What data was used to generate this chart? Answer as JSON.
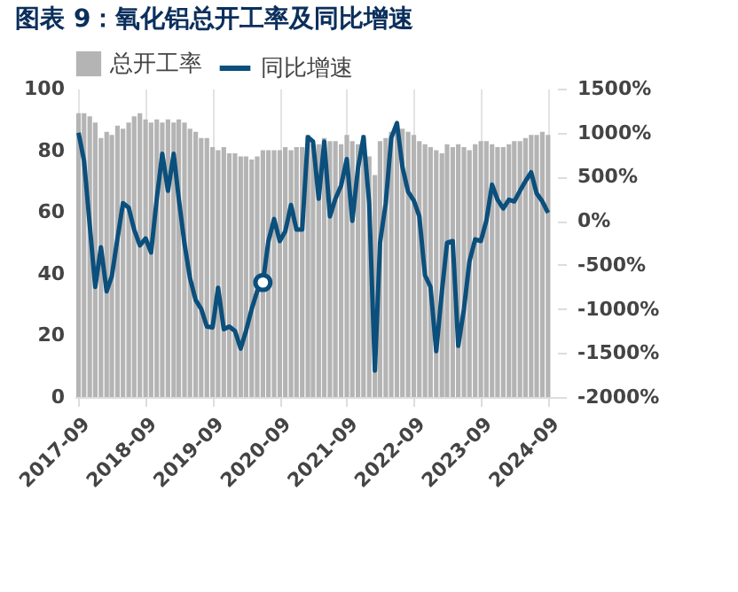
{
  "chart_data": {
    "type": "bar",
    "title": "图表 9：氧化铝总开工率及同比增速",
    "x": [
      "2017-09",
      "2017-10",
      "2017-11",
      "2017-12",
      "2018-01",
      "2018-02",
      "2018-03",
      "2018-04",
      "2018-05",
      "2018-06",
      "2018-07",
      "2018-08",
      "2018-09",
      "2018-10",
      "2018-11",
      "2018-12",
      "2019-01",
      "2019-02",
      "2019-03",
      "2019-04",
      "2019-05",
      "2019-06",
      "2019-07",
      "2019-08",
      "2019-09",
      "2019-10",
      "2019-11",
      "2019-12",
      "2020-01",
      "2020-02",
      "2020-03",
      "2020-04",
      "2020-05",
      "2020-06",
      "2020-07",
      "2020-08",
      "2020-09",
      "2020-10",
      "2020-11",
      "2020-12",
      "2021-01",
      "2021-02",
      "2021-03",
      "2021-04",
      "2021-05",
      "2021-06",
      "2021-07",
      "2021-08",
      "2021-09",
      "2021-10",
      "2021-11",
      "2021-12",
      "2022-01",
      "2022-02",
      "2022-03",
      "2022-04",
      "2022-05",
      "2022-06",
      "2022-07",
      "2022-08",
      "2022-09",
      "2022-10",
      "2022-11",
      "2022-12",
      "2023-01",
      "2023-02",
      "2023-03",
      "2023-04",
      "2023-05",
      "2023-06",
      "2023-07",
      "2023-08",
      "2023-09",
      "2023-10",
      "2023-11",
      "2023-12",
      "2024-01",
      "2024-02",
      "2024-03",
      "2024-04",
      "2024-05",
      "2024-06",
      "2024-07",
      "2024-08",
      "2024-09"
    ],
    "series": [
      {
        "name": "总开工率",
        "color": "#b4b4b4",
        "values": [
          92,
          92,
          91,
          89,
          84,
          86,
          85,
          88,
          87,
          89,
          91,
          92,
          90,
          89,
          90,
          89,
          90,
          89,
          90,
          89,
          87,
          86,
          84,
          84,
          81,
          80,
          81,
          79,
          79,
          78,
          78,
          77,
          78,
          80,
          80,
          80,
          80,
          81,
          80,
          81,
          81,
          85,
          82,
          82,
          84,
          83,
          83,
          82,
          85,
          83,
          82,
          85,
          78,
          72,
          83,
          84,
          86,
          88,
          87,
          86,
          85,
          83,
          82,
          81,
          80,
          79,
          82,
          81,
          82,
          81,
          80,
          82,
          83,
          83,
          82,
          81,
          81,
          82,
          83,
          83,
          84,
          85,
          85,
          86,
          85
        ]
      },
      {
        "name": "同比增速",
        "type": "line",
        "axis": "y2",
        "color": "#0b4f7c",
        "values": [
          1000,
          680,
          -50,
          -750,
          -300,
          -800,
          -630,
          -200,
          200,
          150,
          -100,
          -280,
          -200,
          -360,
          250,
          760,
          340,
          760,
          250,
          -260,
          -650,
          -900,
          -1000,
          -1200,
          -1210,
          -760,
          -1230,
          -1200,
          -1250,
          -1450,
          -1250,
          -1000,
          -800,
          -700,
          -230,
          20,
          -230,
          -120,
          180,
          -100,
          -100,
          950,
          900,
          250,
          900,
          50,
          250,
          400,
          700,
          0,
          600,
          950,
          200,
          -1700,
          -250,
          200,
          940,
          1110,
          610,
          330,
          230,
          50,
          -620,
          -750,
          -1480,
          -800,
          -250,
          -230,
          -1420,
          -1000,
          -460,
          -210,
          -230,
          0,
          410,
          240,
          140,
          240,
          220,
          340,
          450,
          550,
          310,
          220,
          90
        ]
      },
      {
        "type": "scatter",
        "axis": "y2",
        "color": "#0b4f7c",
        "marker": "circle",
        "x": [
          "2020-06"
        ],
        "values": [
          -700
        ]
      }
    ],
    "xlim": [
      "2017-08-10",
      "2024-10-20"
    ],
    "xticks": [
      "2017-09",
      "2018-09",
      "2019-09",
      "2020-09",
      "2021-09",
      "2022-09",
      "2023-09",
      "2024-09"
    ],
    "ylim": [
      0,
      100
    ],
    "yticks": [
      0,
      20,
      40,
      60,
      80,
      100
    ],
    "y2lim": [
      -2000,
      1500
    ],
    "y2ticks": [
      {
        "value": -2000,
        "label": "-2000%"
      },
      {
        "value": -1500,
        "label": "-1500%"
      },
      {
        "value": -1000,
        "label": "-1000%"
      },
      {
        "value": -500,
        "label": "-500%"
      },
      {
        "value": 0,
        "label": "0%"
      },
      {
        "value": 500,
        "label": "500%"
      },
      {
        "value": 1000,
        "label": "1000%"
      },
      {
        "value": 1500,
        "label": "1500%"
      }
    ],
    "grid": "x",
    "legend": "top"
  }
}
